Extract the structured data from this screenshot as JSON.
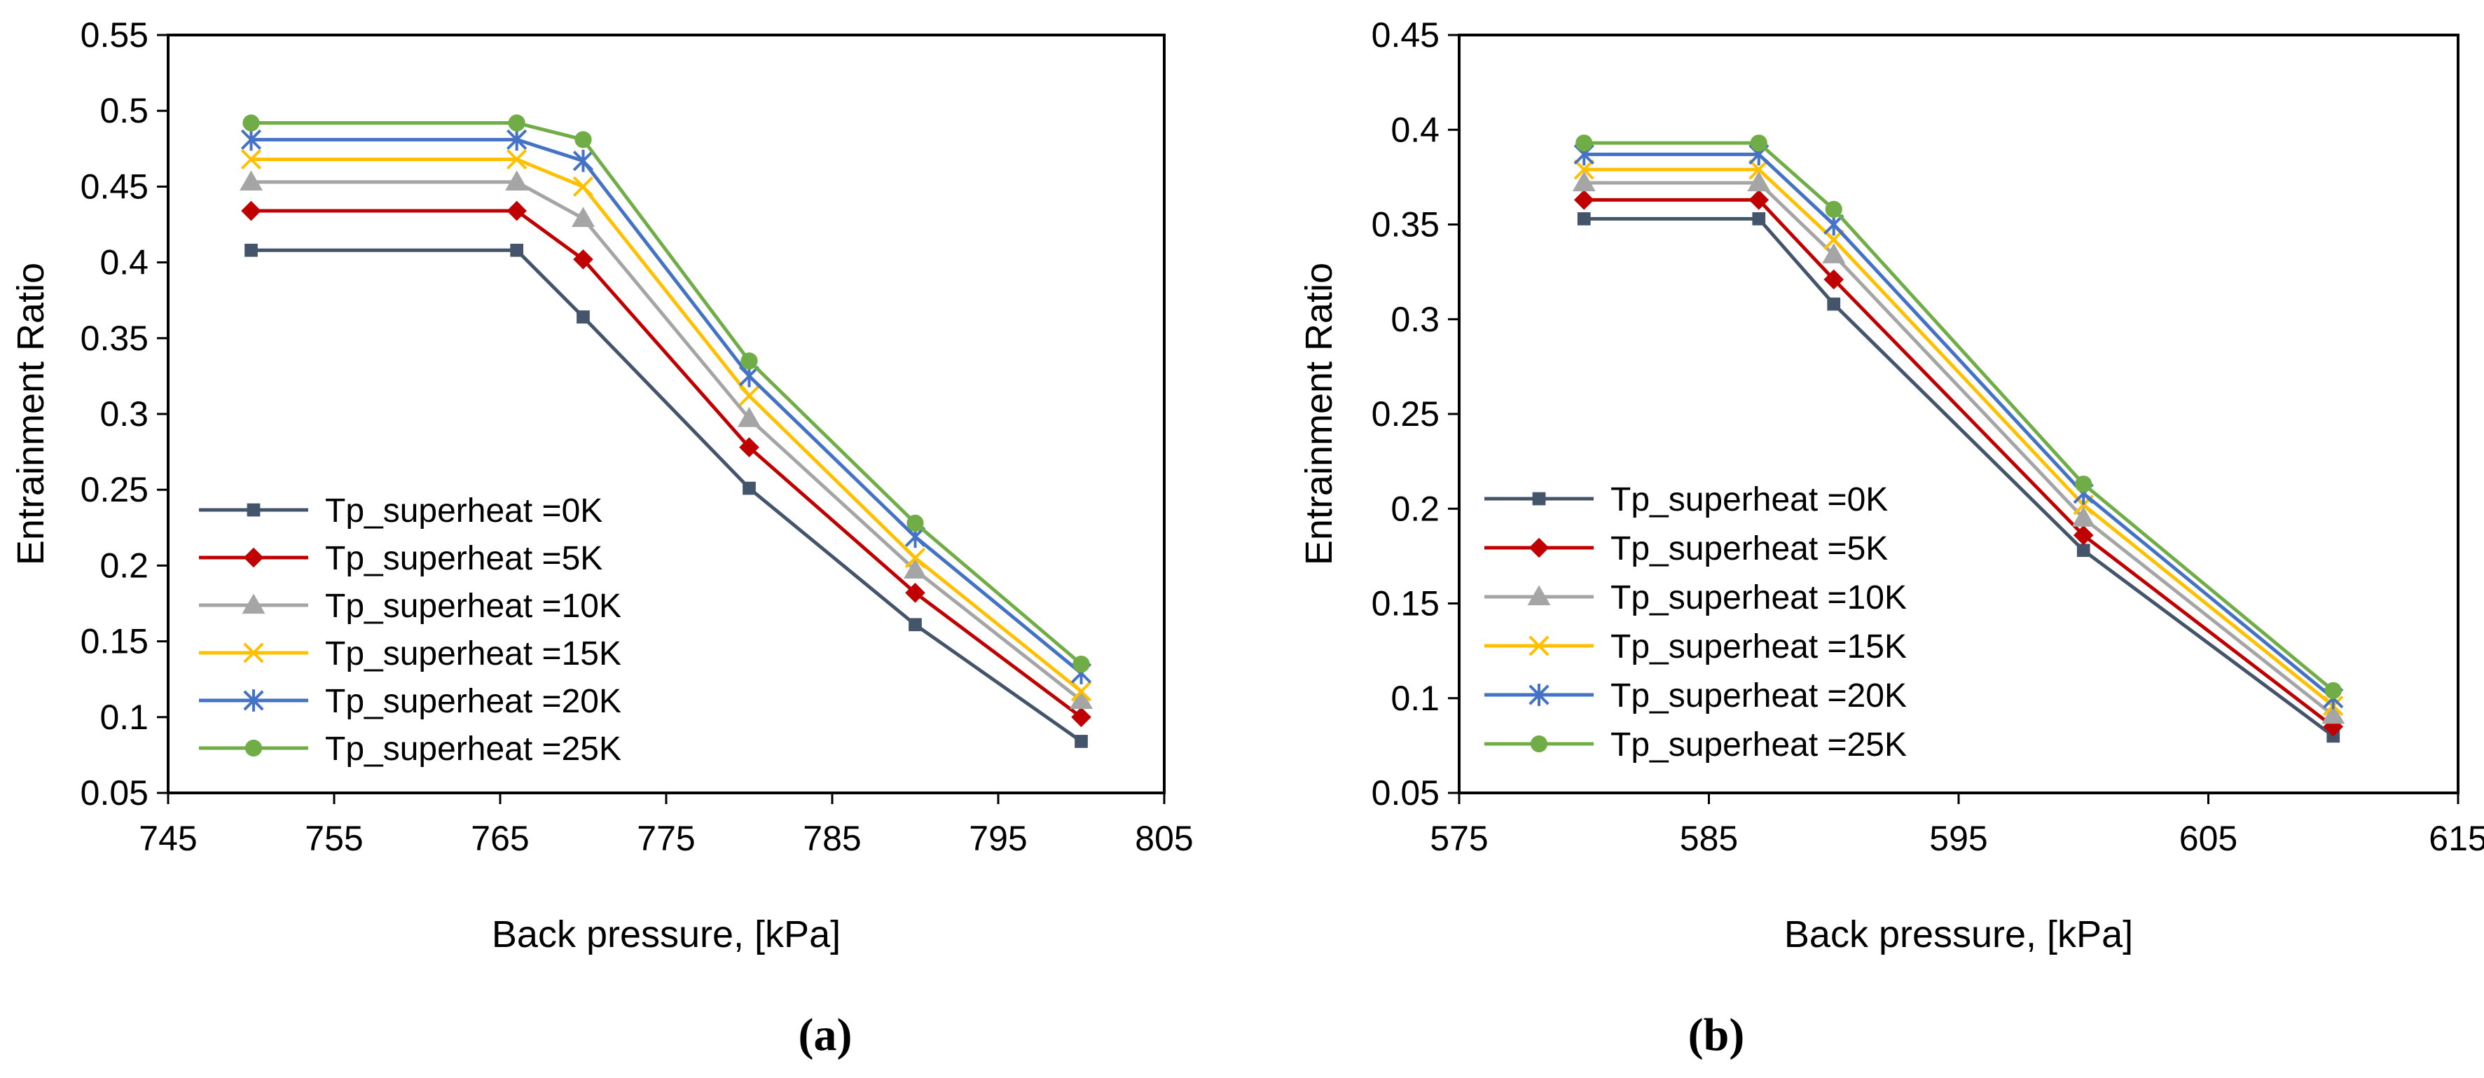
{
  "chart_data": [
    {
      "type": "line",
      "panel_label": "(a)",
      "xlabel": "Back pressure, [kPa]",
      "ylabel": "Entrainment Ratio",
      "xlim": [
        745,
        805
      ],
      "xticks": [
        745,
        755,
        765,
        775,
        785,
        795,
        805
      ],
      "ylim": [
        0.05,
        0.55
      ],
      "yticks": [
        "0.05",
        "0.1",
        "0.15",
        "0.2",
        "0.25",
        "0.3",
        "0.35",
        "0.4",
        "0.45",
        "0.5",
        "0.55"
      ],
      "legend_position": "lower-left",
      "x": [
        750,
        766,
        770,
        780,
        790,
        800
      ],
      "series": [
        {
          "name": "Tp_superheat =0K",
          "color": "#44546A",
          "marker": "square",
          "values": [
            0.408,
            0.408,
            0.364,
            0.251,
            0.161,
            0.084
          ]
        },
        {
          "name": "Tp_superheat =5K",
          "color": "#C00000",
          "marker": "diamond",
          "values": [
            0.434,
            0.434,
            0.402,
            0.278,
            0.182,
            0.1
          ]
        },
        {
          "name": "Tp_superheat =10K",
          "color": "#A5A5A5",
          "marker": "triangle",
          "values": [
            0.453,
            0.453,
            0.429,
            0.297,
            0.197,
            0.111
          ]
        },
        {
          "name": "Tp_superheat =15K",
          "color": "#FFC000",
          "marker": "x",
          "values": [
            0.468,
            0.468,
            0.45,
            0.312,
            0.205,
            0.117
          ]
        },
        {
          "name": "Tp_superheat =20K",
          "color": "#4472C4",
          "marker": "star",
          "values": [
            0.481,
            0.481,
            0.467,
            0.325,
            0.219,
            0.129
          ]
        },
        {
          "name": "Tp_superheat =25K",
          "color": "#70AD47",
          "marker": "circle",
          "values": [
            0.492,
            0.492,
            0.481,
            0.335,
            0.228,
            0.135
          ]
        }
      ]
    },
    {
      "type": "line",
      "panel_label": "(b)",
      "xlabel": "Back pressure, [kPa]",
      "ylabel": "Entrainment Ratio",
      "xlim": [
        575,
        615
      ],
      "xticks": [
        575,
        585,
        595,
        605,
        615
      ],
      "ylim": [
        0.05,
        0.45
      ],
      "yticks": [
        "0.05",
        "0.1",
        "0.15",
        "0.2",
        "0.25",
        "0.3",
        "0.35",
        "0.4",
        "0.45"
      ],
      "legend_position": "lower-left",
      "x": [
        580,
        587,
        590,
        600,
        610
      ],
      "series": [
        {
          "name": "Tp_superheat =0K",
          "color": "#44546A",
          "marker": "square",
          "values": [
            0.353,
            0.353,
            0.308,
            0.178,
            0.08
          ]
        },
        {
          "name": "Tp_superheat =5K",
          "color": "#C00000",
          "marker": "diamond",
          "values": [
            0.363,
            0.363,
            0.321,
            0.186,
            0.085
          ]
        },
        {
          "name": "Tp_superheat =10K",
          "color": "#A5A5A5",
          "marker": "triangle",
          "values": [
            0.372,
            0.372,
            0.334,
            0.195,
            0.091
          ]
        },
        {
          "name": "Tp_superheat =15K",
          "color": "#FFC000",
          "marker": "x",
          "values": [
            0.379,
            0.379,
            0.342,
            0.202,
            0.096
          ]
        },
        {
          "name": "Tp_superheat =20K",
          "color": "#4472C4",
          "marker": "star",
          "values": [
            0.387,
            0.387,
            0.35,
            0.208,
            0.1
          ]
        },
        {
          "name": "Tp_superheat =25K",
          "color": "#70AD47",
          "marker": "circle",
          "values": [
            0.393,
            0.393,
            0.358,
            0.213,
            0.104
          ]
        }
      ]
    }
  ]
}
